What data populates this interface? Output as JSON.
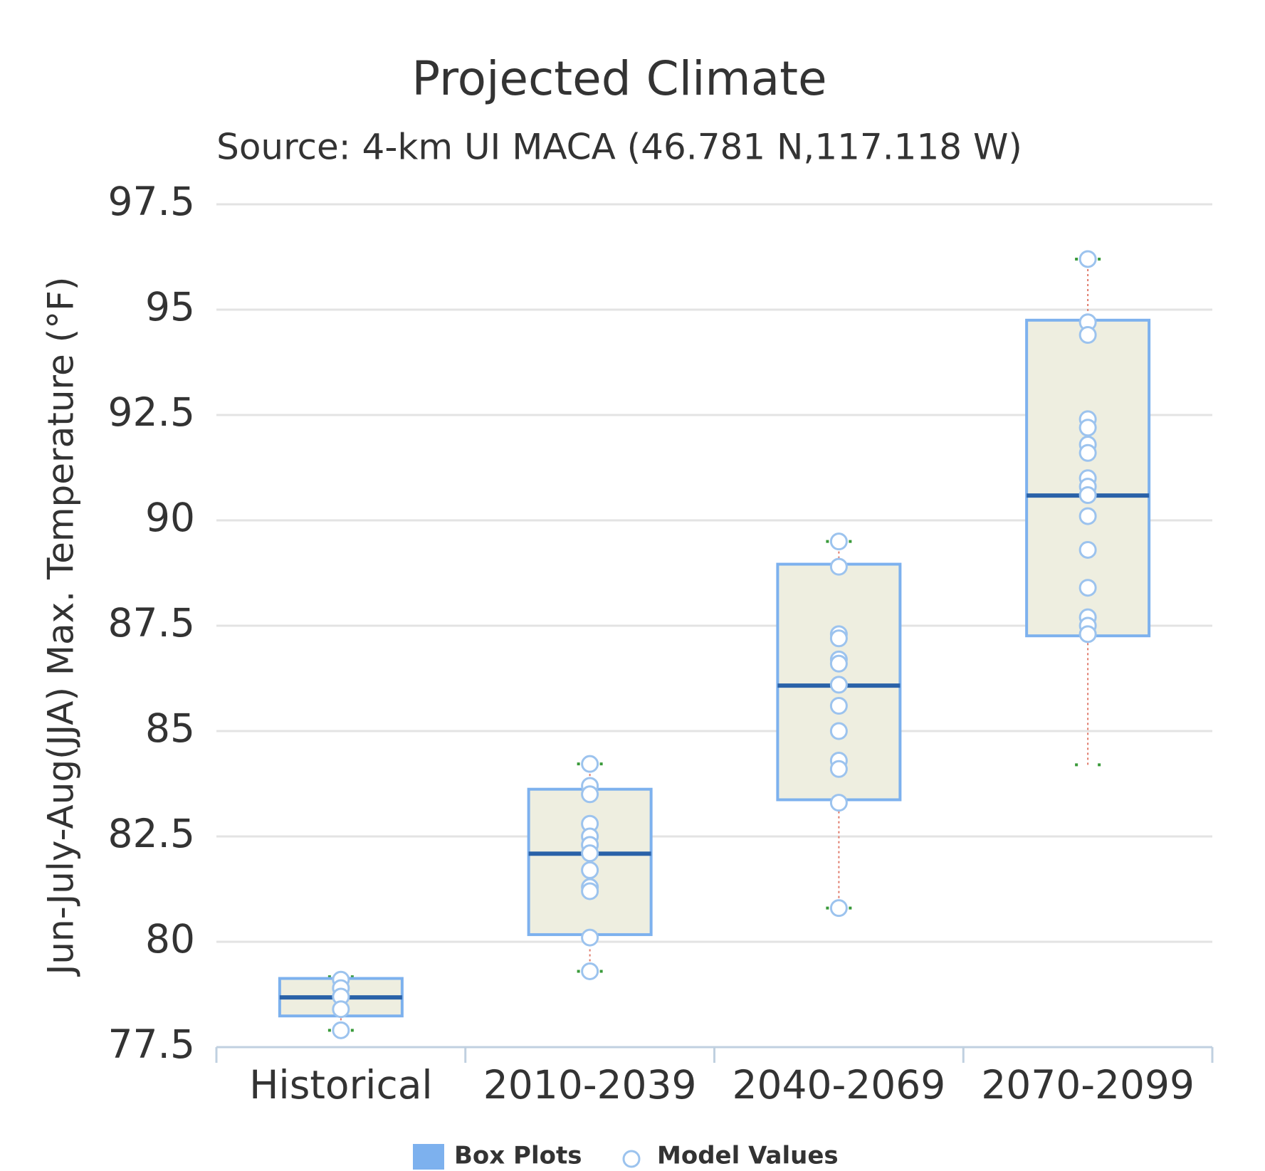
{
  "chart_data": {
    "type": "boxplot",
    "title": "Projected Climate",
    "subtitle": "Source: 4-km UI MACA (46.781 N,117.118 W)",
    "y_label": "Jun-July-Aug(JJA) Max. Temperature (°F)",
    "categories": [
      "Historical",
      "2010-2039",
      "2040-2069",
      "2070-2099"
    ],
    "ylim": [
      77.5,
      97.5
    ],
    "yticks": [
      77.5,
      80,
      82.5,
      85,
      87.5,
      90,
      92.5,
      95,
      97.5
    ],
    "grid": true,
    "series": [
      {
        "name": "Box Plots",
        "color": "#7db1ee",
        "boxes": [
          {
            "low": 77.9,
            "q1": 78.24,
            "median": 78.68,
            "q3": 79.13,
            "high": 79.17
          },
          {
            "low": 79.3,
            "q1": 80.17,
            "median": 82.09,
            "q3": 83.62,
            "high": 84.22
          },
          {
            "low": 80.8,
            "q1": 83.37,
            "median": 86.08,
            "q3": 88.96,
            "high": 89.5
          },
          {
            "low": 84.2,
            "q1": 87.26,
            "median": 90.59,
            "q3": 94.75,
            "high": 96.2
          }
        ]
      },
      {
        "name": "Model Values",
        "color": "#9cc3ee",
        "points": [
          [
            79.1,
            78.9,
            78.7,
            78.4,
            77.9
          ],
          [
            84.22,
            83.7,
            83.5,
            82.8,
            82.5,
            82.3,
            82.1,
            81.7,
            81.3,
            81.2,
            80.1,
            79.3
          ],
          [
            89.5,
            88.9,
            87.3,
            87.2,
            86.7,
            86.6,
            86.1,
            85.6,
            85.0,
            84.3,
            84.1,
            83.3,
            80.8
          ],
          [
            96.2,
            94.7,
            94.4,
            92.4,
            92.2,
            91.8,
            91.6,
            91.0,
            90.8,
            90.6,
            90.1,
            89.3,
            88.4,
            87.7,
            87.5,
            87.3
          ]
        ]
      }
    ]
  }
}
